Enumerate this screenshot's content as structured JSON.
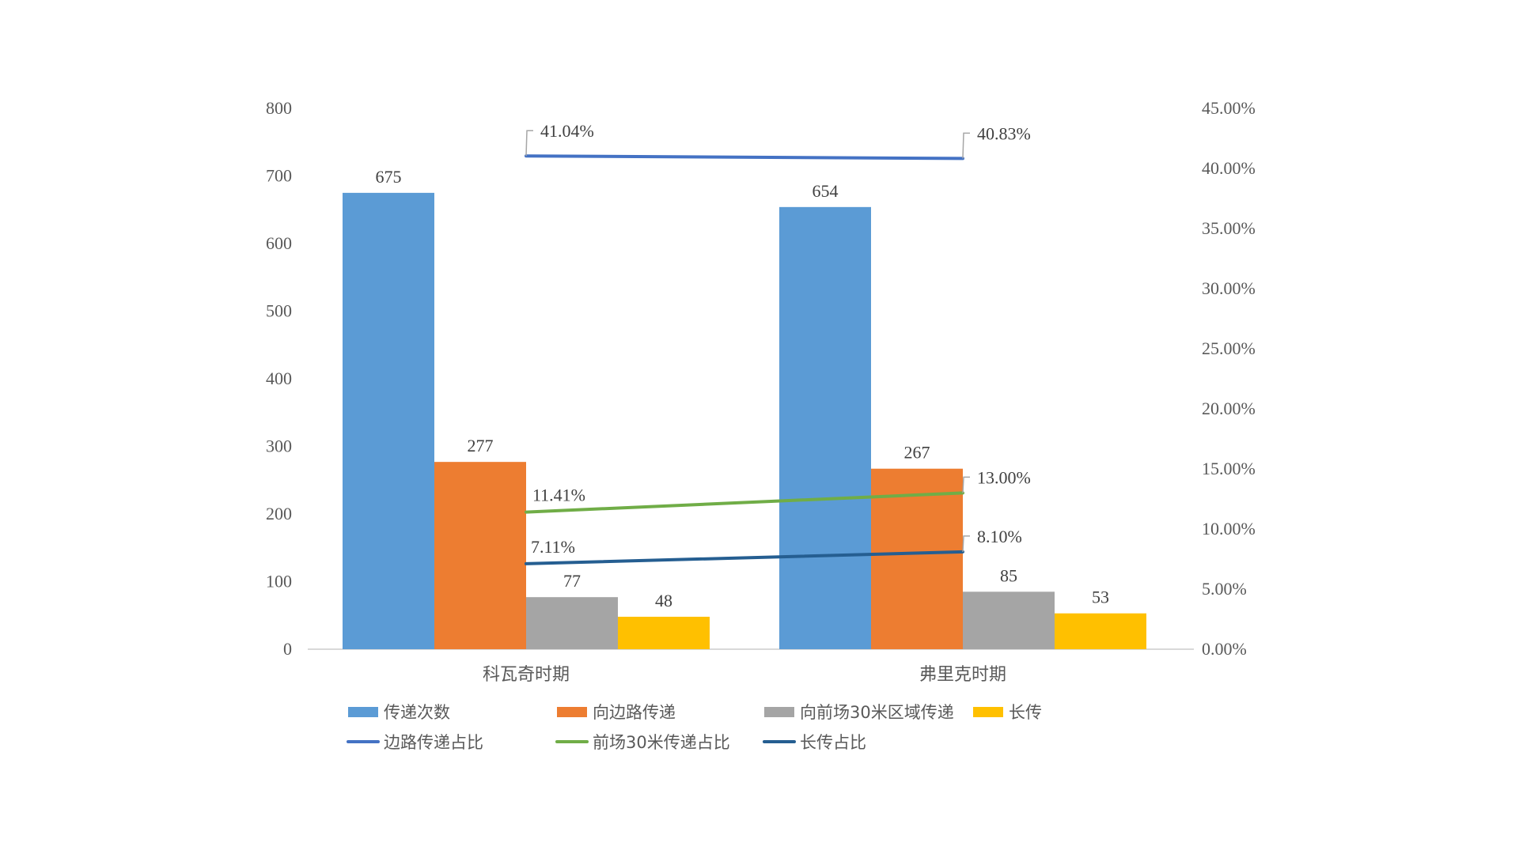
{
  "chart_data": {
    "type": "bar+line",
    "title": "",
    "categories": [
      "科瓦奇时期",
      "弗里克时期"
    ],
    "bar_series": [
      {
        "name": "传递次数",
        "values": [
          675,
          654
        ],
        "color": "#5B9BD5"
      },
      {
        "name": "向边路传递",
        "values": [
          277,
          267
        ],
        "color": "#ED7D31"
      },
      {
        "name": "向前场30米区域传递",
        "values": [
          77,
          85
        ],
        "color": "#A5A5A5"
      },
      {
        "name": "长传",
        "values": [
          48,
          53
        ],
        "color": "#FFC000"
      }
    ],
    "line_series": [
      {
        "name": "边路传递占比",
        "values": [
          41.04,
          40.83
        ],
        "labels": [
          "41.04%",
          "40.83%"
        ],
        "color": "#4472C4"
      },
      {
        "name": "前场30米传递占比",
        "values": [
          11.41,
          13.0
        ],
        "labels": [
          "11.41%",
          "13.00%"
        ],
        "color": "#70AD47"
      },
      {
        "name": "长传占比",
        "values": [
          7.11,
          8.1
        ],
        "labels": [
          "7.11%",
          "8.10%"
        ],
        "color": "#255E91"
      }
    ],
    "y_left": {
      "min": 0,
      "max": 800,
      "step": 100,
      "ticks": [
        "0",
        "100",
        "200",
        "300",
        "400",
        "500",
        "600",
        "700",
        "800"
      ]
    },
    "y_right": {
      "min": 0,
      "max": 45,
      "step": 5,
      "ticks": [
        "0.00%",
        "5.00%",
        "10.00%",
        "15.00%",
        "20.00%",
        "25.00%",
        "30.00%",
        "35.00%",
        "40.00%",
        "45.00%"
      ]
    },
    "xlabel": "",
    "ylabel": "",
    "grid": false,
    "legend_position": "bottom",
    "legend_order": [
      "传递次数",
      "向边路传递",
      "向前场30米区域传递",
      "长传",
      "边路传递占比",
      "前场30米传递占比",
      "长传占比"
    ]
  }
}
